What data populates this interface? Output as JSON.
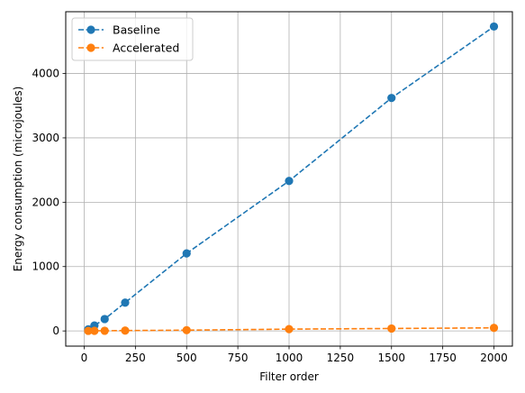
{
  "chart_data": {
    "type": "line",
    "title": "",
    "xlabel": "Filter order",
    "ylabel": "Energy consumption (microjoules)",
    "xlim": [
      -90,
      2090
    ],
    "ylim": [
      -236,
      4960
    ],
    "xticks": [
      0,
      250,
      500,
      750,
      1000,
      1250,
      1500,
      1750,
      2000
    ],
    "yticks": [
      0,
      1000,
      2000,
      3000,
      4000
    ],
    "grid": true,
    "legend_position": "top-left",
    "line_style": "dashed",
    "marker": "circle",
    "series": [
      {
        "name": "Baseline",
        "color": "#1f77b4",
        "x": [
          20,
          50,
          100,
          200,
          500,
          1000,
          1500,
          2000
        ],
        "y": [
          25,
          85,
          185,
          440,
          1205,
          2330,
          3620,
          4730
        ]
      },
      {
        "name": "Accelerated",
        "color": "#ff7f0e",
        "x": [
          20,
          50,
          100,
          200,
          500,
          1000,
          1500,
          2000
        ],
        "y": [
          1,
          2,
          3,
          6,
          12,
          28,
          38,
          48
        ]
      }
    ]
  }
}
